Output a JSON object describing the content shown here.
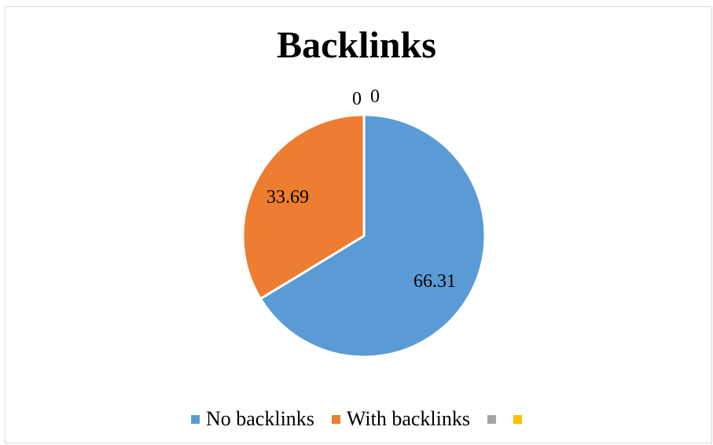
{
  "chart_data": {
    "type": "pie",
    "title": "Backlinks",
    "slices": [
      {
        "name": "No backlinks",
        "value": 66.31,
        "label": "66.31",
        "color": "#5b9bd5"
      },
      {
        "name": "With backlinks",
        "value": 33.69,
        "label": "33.69",
        "color": "#ed7d31"
      },
      {
        "name": "",
        "value": 0,
        "label": "0",
        "color": "#a5a5a5"
      },
      {
        "name": "",
        "value": 0,
        "label": "0",
        "color": "#ffc000"
      }
    ],
    "legend_position": "bottom",
    "start_angle": "12 o'clock",
    "direction": "clockwise"
  }
}
